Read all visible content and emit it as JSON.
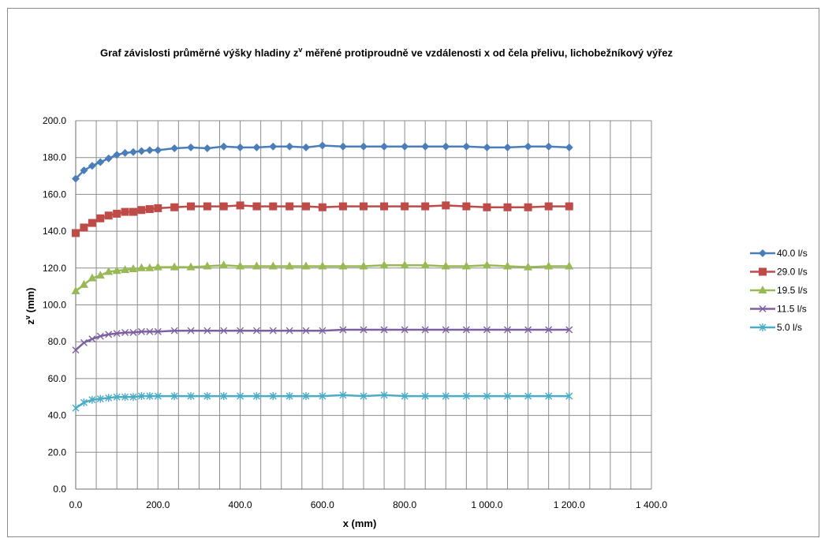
{
  "chart_data": {
    "type": "line",
    "title": "Graf závislosti průměrné výšky hladiny z",
    "title_superscript": "v",
    "title_rest": " měřené protiproudně ve vzdálenosti x od čela přelivu, lichobežníkový výřez",
    "xlabel": "x (mm)",
    "ylabel": "z",
    "ylabel_superscript": "v",
    "ylabel_rest": " (mm)",
    "xlim": [
      0,
      1400
    ],
    "ylim": [
      0,
      200
    ],
    "x_ticks": [
      0,
      200,
      400,
      600,
      800,
      1000,
      1200,
      1400
    ],
    "x_tick_labels": [
      "0.0",
      "200.0",
      "400.0",
      "600.0",
      "800.0",
      "1 000.0",
      "1 200.0",
      "1 400.0"
    ],
    "y_ticks": [
      0,
      20,
      40,
      60,
      80,
      100,
      120,
      140,
      160,
      180,
      200
    ],
    "y_tick_labels": [
      "0.0",
      "20.0",
      "40.0",
      "60.0",
      "80.0",
      "100.0",
      "120.0",
      "140.0",
      "160.0",
      "180.0",
      "200.0"
    ],
    "grid": true,
    "legend_position": "right",
    "x": [
      0,
      20,
      40,
      60,
      80,
      100,
      120,
      140,
      160,
      180,
      200,
      240,
      280,
      320,
      360,
      400,
      440,
      480,
      520,
      560,
      600,
      650,
      700,
      750,
      800,
      850,
      900,
      950,
      1000,
      1050,
      1100,
      1150,
      1200
    ],
    "series": [
      {
        "name": "40.0 l/s",
        "color": "#4a7ebb",
        "marker": "diamond",
        "values": [
          168.5,
          173.0,
          175.5,
          177.5,
          179.5,
          181.5,
          182.5,
          183.0,
          183.5,
          184.0,
          184.0,
          185.0,
          185.5,
          185.0,
          186.0,
          185.5,
          185.5,
          186.0,
          186.0,
          185.5,
          186.5,
          186.0,
          186.0,
          186.0,
          186.0,
          186.0,
          186.0,
          186.0,
          185.5,
          185.5,
          186.0,
          186.0,
          185.5
        ]
      },
      {
        "name": "29.0 l/s",
        "color": "#be4b48",
        "marker": "square",
        "values": [
          139.0,
          142.0,
          144.5,
          147.0,
          148.5,
          149.5,
          150.5,
          150.5,
          151.5,
          152.0,
          152.5,
          153.0,
          153.5,
          153.5,
          153.5,
          154.0,
          153.5,
          153.5,
          153.5,
          153.5,
          153.0,
          153.5,
          153.5,
          153.5,
          153.5,
          153.5,
          154.0,
          153.5,
          153.0,
          153.0,
          153.0,
          153.5,
          153.5
        ]
      },
      {
        "name": "19.5 l/s",
        "color": "#98b954",
        "marker": "triangle",
        "values": [
          107.5,
          111.0,
          114.5,
          116.0,
          118.0,
          118.5,
          119.0,
          119.5,
          120.0,
          120.0,
          120.5,
          120.5,
          120.5,
          121.0,
          121.5,
          121.0,
          121.0,
          121.0,
          121.0,
          121.0,
          121.0,
          121.0,
          121.0,
          121.5,
          121.5,
          121.5,
          121.0,
          121.0,
          121.5,
          121.0,
          120.5,
          121.0,
          121.0
        ]
      },
      {
        "name": "11.5 l/s",
        "color": "#7d60a0",
        "marker": "x",
        "values": [
          75.5,
          79.5,
          81.5,
          83.0,
          84.0,
          84.5,
          85.0,
          85.0,
          85.5,
          85.5,
          85.5,
          86.0,
          86.0,
          86.0,
          86.0,
          86.0,
          86.0,
          86.0,
          86.0,
          86.0,
          86.0,
          86.5,
          86.5,
          86.5,
          86.5,
          86.5,
          86.5,
          86.5,
          86.5,
          86.5,
          86.5,
          86.5,
          86.5
        ]
      },
      {
        "name": "5.0 l/s",
        "color": "#4bacc6",
        "marker": "asterisk",
        "values": [
          44.0,
          47.0,
          48.5,
          49.0,
          49.5,
          50.0,
          50.0,
          50.0,
          50.5,
          50.5,
          50.5,
          50.5,
          50.5,
          50.5,
          50.5,
          50.5,
          50.5,
          50.5,
          50.5,
          50.5,
          50.5,
          51.0,
          50.5,
          51.0,
          50.5,
          50.5,
          50.5,
          50.5,
          50.5,
          50.5,
          50.5,
          50.5,
          50.5
        ]
      }
    ]
  }
}
